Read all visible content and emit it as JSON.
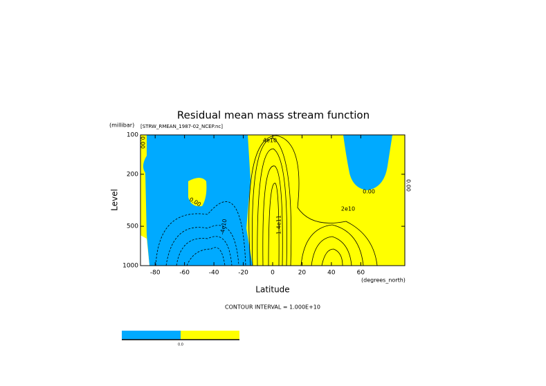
{
  "chart_data": {
    "type": "contour",
    "title": "Residual mean mass stream function",
    "y_unit": "(millibar)",
    "dataset": "[STRW_RMEAN_1987-02_NCEP.nc]",
    "y_label": "Level",
    "x_label": "Latitude",
    "x_unit": "(degrees_north)",
    "footnote": "CONTOUR INTERVAL = 1.000E+10",
    "xlim": [
      -90,
      90
    ],
    "xticks": [
      -80,
      -60,
      -40,
      -20,
      0,
      20,
      40,
      60
    ],
    "ylim": [
      100,
      1000
    ],
    "yticks": [
      100,
      200,
      500,
      1000
    ],
    "y_log": true,
    "y_inverted": true,
    "contour_labels": [
      "0.00",
      "4e10",
      "0.00",
      "-4e10",
      "1.4e11",
      "2e10",
      "0.00",
      "0.00"
    ],
    "colorbar": {
      "colors": [
        "#00aaff",
        "#ffff00"
      ],
      "labels": [
        "0.0"
      ]
    }
  }
}
